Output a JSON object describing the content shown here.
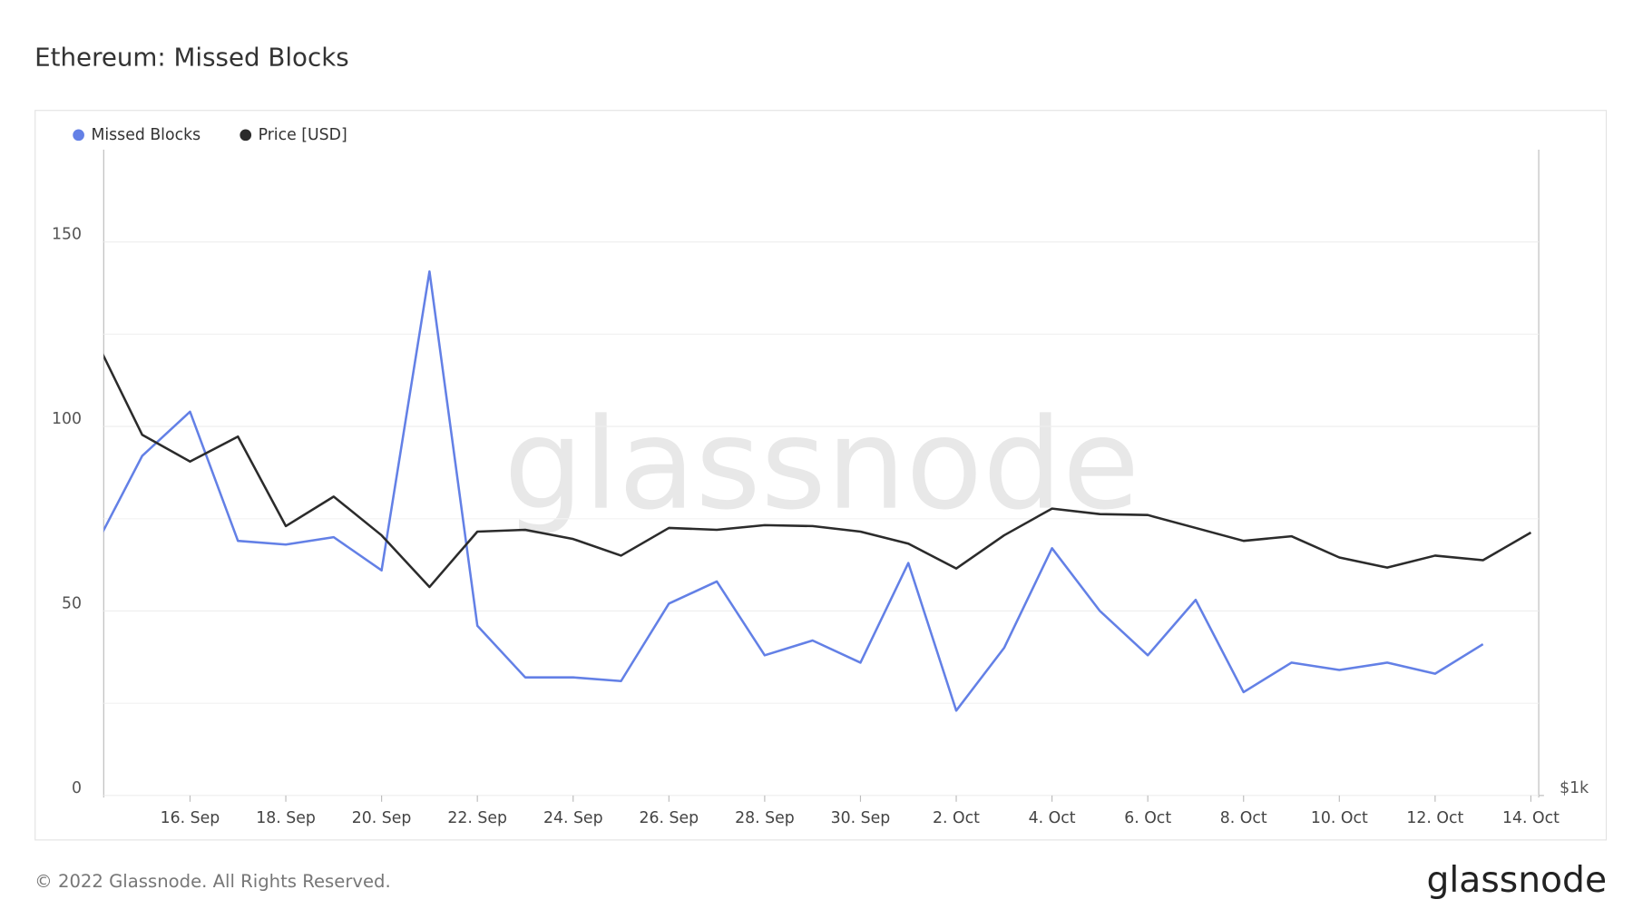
{
  "chart_data": {
    "type": "line",
    "title": "Ethereum: Missed Blocks",
    "watermark": "glassnode",
    "footer": "© 2022 Glassnode. All Rights Reserved.",
    "logo": "glassnode",
    "categories": [
      null,
      null,
      "16. Sep",
      null,
      "18. Sep",
      null,
      "20. Sep",
      null,
      "22. Sep",
      null,
      "24. Sep",
      null,
      "26. Sep",
      null,
      "28. Sep",
      null,
      "30. Sep",
      null,
      "2. Oct",
      null,
      "4. Oct",
      null,
      "6. Oct",
      null,
      "8. Oct",
      null,
      "10. Oct",
      null,
      "12. Oct",
      null,
      "14. Oct"
    ],
    "series": [
      {
        "name": "Missed Blocks",
        "color": "#6380e6",
        "values": [
          67,
          92,
          104,
          69,
          68,
          70,
          61,
          142,
          46,
          32,
          32,
          31,
          52,
          58,
          38,
          42,
          36,
          63,
          23,
          40,
          67,
          50,
          38,
          53,
          28,
          36,
          34,
          36,
          33,
          41,
          null
        ]
      },
      {
        "name": "Price [USD]",
        "color": "#2b2b2b",
        "axis": "y2",
        "values": [
          1497,
          1391,
          1362,
          1389,
          1292,
          1324,
          1282,
          1226,
          1286,
          1288,
          1278,
          1260,
          1290,
          1288,
          1293,
          1292,
          1286,
          1273,
          1246,
          1282,
          1311,
          1305,
          1304,
          1290,
          1276,
          1281,
          1258,
          1247,
          1260,
          1255,
          1285
        ]
      }
    ],
    "ylim": [
      0,
      175
    ],
    "yticks": [
      0,
      50,
      100,
      150
    ],
    "minor_yticks": [
      25,
      75,
      125
    ],
    "y2lim": [
      1000,
      1700
    ],
    "y2ticks": [
      {
        "value": 1000,
        "label": "$1k"
      }
    ],
    "grid": true
  }
}
